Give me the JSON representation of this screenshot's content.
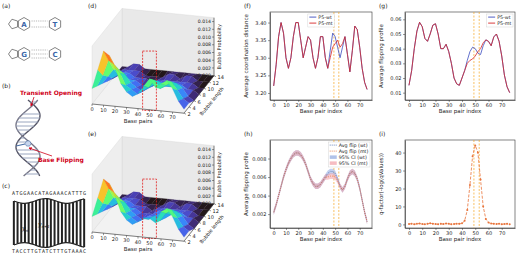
{
  "chart_data": [
    {
      "type": "surface",
      "panel": "(d)",
      "x": [
        0,
        5,
        10,
        15,
        20,
        25,
        30,
        35,
        40,
        45,
        50,
        55,
        60,
        65,
        70,
        75,
        80
      ],
      "y": [
        2,
        4,
        6,
        8,
        10,
        12,
        14
      ],
      "z": [
        [
          0.004,
          0.009,
          0.014,
          0.013,
          0.01,
          0.006,
          0.004,
          0.003,
          0.004,
          0.006,
          0.008,
          0.006,
          0.007,
          0.008,
          0.006,
          0.003,
          0.001
        ],
        [
          0.003,
          0.006,
          0.01,
          0.009,
          0.007,
          0.004,
          0.003,
          0.002,
          0.003,
          0.004,
          0.006,
          0.004,
          0.005,
          0.006,
          0.004,
          0.002,
          0.001
        ],
        [
          0.002,
          0.004,
          0.006,
          0.006,
          0.005,
          0.003,
          0.002,
          0.001,
          0.002,
          0.003,
          0.004,
          0.003,
          0.003,
          0.004,
          0.003,
          0.001,
          0
        ],
        [
          0.001,
          0.002,
          0.003,
          0.003,
          0.002,
          0.002,
          0.001,
          0.001,
          0.001,
          0.002,
          0.002,
          0.002,
          0.002,
          0.002,
          0.001,
          0.001,
          0
        ],
        [
          0,
          0.001,
          0.002,
          0.002,
          0.001,
          0.001,
          0.001,
          0,
          0.001,
          0.001,
          0.001,
          0.001,
          0.001,
          0.001,
          0.001,
          0,
          0
        ],
        [
          0,
          0.001,
          0.001,
          0.001,
          0.001,
          0,
          0,
          0,
          0,
          0.001,
          0.001,
          0,
          0.001,
          0.001,
          0,
          0,
          0
        ],
        [
          0,
          0,
          0.001,
          0.001,
          0,
          0,
          0,
          0,
          0,
          0,
          0,
          0,
          0,
          0,
          0,
          0,
          0
        ]
      ],
      "xlim": [
        0,
        80
      ],
      "ylim": [
        2,
        14
      ],
      "zlim": [
        0,
        0.015
      ],
      "xticks": [
        0,
        10,
        20,
        30,
        40,
        50,
        60,
        70
      ],
      "yticks": [
        2,
        4,
        6,
        8,
        10,
        12,
        14
      ],
      "zticks": [
        {
          "value": 0,
          "label": "0.000"
        },
        0.002,
        0.004,
        0.006,
        0.008,
        {
          "value": 0.01,
          "label": "0.010"
        },
        0.012,
        0.014
      ],
      "x_label": "Base pairs",
      "y_label": "Bubble length",
      "z_label": "Bubble Probability",
      "highlight_x": [
        44,
        56
      ]
    },
    {
      "type": "surface",
      "panel": "(e)",
      "x": [
        0,
        5,
        10,
        15,
        20,
        25,
        30,
        35,
        40,
        45,
        50,
        55,
        60,
        65,
        70,
        75,
        80
      ],
      "y": [
        2,
        4,
        6,
        8,
        10,
        12,
        14
      ],
      "z": [
        [
          0.004,
          0.009,
          0.014,
          0.013,
          0.01,
          0.006,
          0.004,
          0.003,
          0.004,
          0.005,
          0.005,
          0.004,
          0.007,
          0.008,
          0.006,
          0.003,
          0.001
        ],
        [
          0.003,
          0.006,
          0.01,
          0.009,
          0.007,
          0.004,
          0.003,
          0.002,
          0.003,
          0.003,
          0.004,
          0.003,
          0.005,
          0.006,
          0.004,
          0.002,
          0.001
        ],
        [
          0.002,
          0.004,
          0.006,
          0.006,
          0.005,
          0.003,
          0.002,
          0.001,
          0.002,
          0.002,
          0.003,
          0.002,
          0.003,
          0.004,
          0.003,
          0.001,
          0
        ],
        [
          0.001,
          0.002,
          0.003,
          0.003,
          0.002,
          0.002,
          0.001,
          0.001,
          0.001,
          0.002,
          0.002,
          0.002,
          0.002,
          0.002,
          0.001,
          0.001,
          0
        ],
        [
          0,
          0.001,
          0.002,
          0.002,
          0.001,
          0.001,
          0.001,
          0,
          0.001,
          0.001,
          0.001,
          0.001,
          0.001,
          0.001,
          0.001,
          0,
          0
        ],
        [
          0,
          0.001,
          0.001,
          0.001,
          0.001,
          0,
          0,
          0,
          0,
          0.001,
          0.001,
          0,
          0.001,
          0.001,
          0,
          0,
          0
        ],
        [
          0,
          0,
          0.001,
          0.001,
          0,
          0,
          0,
          0,
          0,
          0,
          0,
          0,
          0,
          0,
          0,
          0,
          0
        ]
      ],
      "xlim": [
        0,
        80
      ],
      "ylim": [
        2,
        14
      ],
      "zlim": [
        0,
        0.015
      ],
      "xticks": [
        0,
        10,
        20,
        30,
        40,
        50,
        60,
        70
      ],
      "yticks": [
        2,
        4,
        6,
        8,
        10,
        12,
        14
      ],
      "zticks": [
        {
          "value": 0,
          "label": "0.000"
        },
        0.002,
        0.004,
        0.006,
        0.008,
        {
          "value": 0.01,
          "label": "0.010"
        },
        0.012,
        0.014
      ],
      "x_label": "Base pairs",
      "y_label": "Bubble length",
      "z_label": "Bubble Probability",
      "highlight_x": [
        44,
        56
      ]
    },
    {
      "type": "line",
      "panel": "(f)",
      "x": [
        0,
        2,
        4,
        6,
        8,
        10,
        12,
        14,
        16,
        18,
        20,
        22,
        24,
        26,
        28,
        30,
        32,
        34,
        36,
        38,
        40,
        42,
        44,
        46,
        48,
        50,
        52,
        54,
        56,
        58,
        60,
        62,
        64,
        66,
        68,
        70,
        72,
        74,
        76
      ],
      "series": [
        {
          "name": "P5-wt",
          "color": "#3b4cc0",
          "values": [
            3.22,
            3.28,
            3.36,
            3.4,
            3.37,
            3.3,
            3.27,
            3.3,
            3.36,
            3.4,
            3.4,
            3.35,
            3.3,
            3.33,
            3.36,
            3.35,
            3.3,
            3.27,
            3.3,
            3.36,
            3.36,
            3.3,
            3.27,
            3.32,
            3.37,
            3.36,
            3.33,
            3.3,
            3.33,
            3.36,
            3.31,
            3.26,
            3.32,
            3.39,
            3.38,
            3.33,
            3.27,
            3.23,
            3.21
          ]
        },
        {
          "name": "P5-mt",
          "color": "#d62728",
          "values": [
            3.22,
            3.28,
            3.36,
            3.4,
            3.37,
            3.3,
            3.27,
            3.3,
            3.36,
            3.4,
            3.4,
            3.35,
            3.3,
            3.33,
            3.36,
            3.35,
            3.3,
            3.27,
            3.3,
            3.36,
            3.36,
            3.3,
            3.27,
            3.3,
            3.33,
            3.34,
            3.35,
            3.33,
            3.34,
            3.36,
            3.31,
            3.26,
            3.32,
            3.39,
            3.38,
            3.33,
            3.27,
            3.23,
            3.21
          ]
        }
      ],
      "xlim": [
        -3,
        80
      ],
      "ylim": [
        3.18,
        3.43
      ],
      "xticks": [
        0,
        10,
        20,
        30,
        40,
        50,
        60,
        70
      ],
      "yticks": [
        {
          "value": 3.2,
          "label": "3.20"
        },
        3.25,
        {
          "value": 3.3,
          "label": "3.30"
        },
        3.35,
        {
          "value": 3.4,
          "label": "3.40"
        }
      ],
      "x_label": "Base pair index",
      "y_label": "Average coordination distance",
      "legend": "upper center",
      "vlines": [
        49,
        53
      ]
    },
    {
      "type": "line",
      "panel": "(g)",
      "x": [
        0,
        2,
        4,
        6,
        8,
        10,
        12,
        14,
        16,
        18,
        20,
        22,
        24,
        26,
        28,
        30,
        32,
        34,
        36,
        38,
        40,
        42,
        44,
        46,
        48,
        50,
        52,
        54,
        56,
        58,
        60,
        62,
        64,
        66,
        68,
        70,
        72,
        74,
        76
      ],
      "series": [
        {
          "name": "P5-wt",
          "color": "#3b4cc0",
          "values": [
            0.015,
            0.025,
            0.04,
            0.052,
            0.058,
            0.055,
            0.047,
            0.045,
            0.05,
            0.056,
            0.057,
            0.05,
            0.04,
            0.04,
            0.043,
            0.038,
            0.03,
            0.02,
            0.016,
            0.015,
            0.02,
            0.025,
            0.032,
            0.038,
            0.041,
            0.04,
            0.037,
            0.036,
            0.042,
            0.046,
            0.045,
            0.042,
            0.048,
            0.05,
            0.045,
            0.035,
            0.022,
            0.014,
            0.01
          ]
        },
        {
          "name": "P5-mt",
          "color": "#d62728",
          "values": [
            0.015,
            0.025,
            0.04,
            0.052,
            0.058,
            0.055,
            0.047,
            0.045,
            0.05,
            0.056,
            0.057,
            0.05,
            0.04,
            0.04,
            0.043,
            0.038,
            0.03,
            0.02,
            0.016,
            0.015,
            0.02,
            0.025,
            0.03,
            0.032,
            0.033,
            0.035,
            0.038,
            0.04,
            0.044,
            0.046,
            0.045,
            0.042,
            0.048,
            0.05,
            0.045,
            0.035,
            0.022,
            0.014,
            0.01
          ]
        }
      ],
      "xlim": [
        -3,
        80
      ],
      "ylim": [
        0.005,
        0.065
      ],
      "xticks": [
        0,
        10,
        20,
        30,
        40,
        50,
        60,
        70
      ],
      "yticks": [
        0.01,
        0.02,
        0.03,
        0.04,
        0.05,
        0.06
      ],
      "x_label": "Base pair index",
      "y_label": "Average flipping profile",
      "legend": "upper right",
      "vlines": [
        49,
        53
      ]
    },
    {
      "type": "line",
      "panel": "(h)",
      "x": [
        0,
        2,
        4,
        6,
        8,
        10,
        12,
        14,
        16,
        18,
        20,
        22,
        24,
        26,
        28,
        30,
        32,
        34,
        36,
        38,
        40,
        42,
        44,
        46,
        48,
        50,
        52,
        54,
        56,
        58,
        60,
        62,
        64,
        66,
        68,
        70,
        72,
        74,
        76
      ],
      "series": [
        {
          "name": "Avg flip (wt)",
          "color": "#4c6fb3",
          "line_style": "dotted",
          "values": [
            0.0022,
            0.003,
            0.004,
            0.005,
            0.006,
            0.0068,
            0.0075,
            0.008,
            0.0084,
            0.0086,
            0.0086,
            0.0084,
            0.008,
            0.0074,
            0.0066,
            0.0058,
            0.0053,
            0.005,
            0.005,
            0.0052,
            0.0056,
            0.006,
            0.0064,
            0.0066,
            0.0066,
            0.0064,
            0.0058,
            0.005,
            0.0046,
            0.005,
            0.0058,
            0.0064,
            0.0066,
            0.0064,
            0.0058,
            0.0048,
            0.0035,
            0.0022,
            0.0012
          ],
          "ci_name": "95% CI (wt)",
          "ci_color": "#8fa8e0",
          "ci": [
            0.0003,
            0.0003,
            0.0003,
            0.0003,
            0.0003,
            0.0003,
            0.0003,
            0.0003,
            0.0003,
            0.0003,
            0.0003,
            0.0003,
            0.0003,
            0.0003,
            0.0003,
            0.0003,
            0.0003,
            0.0003,
            0.0003,
            0.0003,
            0.0003,
            0.0003,
            0.0003,
            0.0003,
            0.0003,
            0.0003,
            0.0003,
            0.0003,
            0.0003,
            0.0003,
            0.0003,
            0.0003,
            0.0003,
            0.0003,
            0.0003,
            0.0003,
            0.0003,
            0.0003,
            0.0003
          ]
        },
        {
          "name": "Avg flip (mt)",
          "color": "#e8743b",
          "line_style": "dotted",
          "values": [
            0.0022,
            0.003,
            0.004,
            0.005,
            0.006,
            0.0068,
            0.0075,
            0.008,
            0.0084,
            0.0086,
            0.0086,
            0.0084,
            0.008,
            0.0074,
            0.0066,
            0.0058,
            0.0053,
            0.005,
            0.005,
            0.0052,
            0.0056,
            0.006,
            0.006,
            0.0061,
            0.0061,
            0.006,
            0.0056,
            0.005,
            0.0046,
            0.005,
            0.0058,
            0.0064,
            0.0066,
            0.0064,
            0.0058,
            0.0048,
            0.0035,
            0.0022,
            0.0012
          ],
          "ci_name": "95% CI (mt)",
          "ci_color": "#f2a0a8",
          "ci": [
            0.0003,
            0.0003,
            0.0003,
            0.0003,
            0.0003,
            0.0003,
            0.0003,
            0.0003,
            0.0003,
            0.0003,
            0.0003,
            0.0003,
            0.0003,
            0.0003,
            0.0003,
            0.0003,
            0.0003,
            0.0003,
            0.0003,
            0.0003,
            0.0003,
            0.0003,
            0.0003,
            0.0003,
            0.0003,
            0.0003,
            0.0003,
            0.0003,
            0.0003,
            0.0003,
            0.0003,
            0.0003,
            0.0003,
            0.0003,
            0.0003,
            0.0003,
            0.0003,
            0.0003,
            0.0003
          ]
        }
      ],
      "xlim": [
        -3,
        80
      ],
      "ylim": [
        0.0005,
        0.01
      ],
      "xticks": [
        0,
        10,
        20,
        30,
        40,
        50,
        60,
        70
      ],
      "yticks": [
        0.002,
        0.004,
        0.006,
        0.008
      ],
      "x_label": "Base pair index",
      "y_label": "Average flipping profile",
      "legend": "upper right",
      "vlines": [
        49,
        53
      ]
    },
    {
      "type": "line",
      "panel": "(i)",
      "x": [
        0,
        2,
        4,
        6,
        8,
        10,
        12,
        14,
        16,
        18,
        20,
        22,
        24,
        26,
        28,
        30,
        32,
        34,
        36,
        38,
        40,
        42,
        44,
        46,
        48,
        50,
        52,
        54,
        56,
        58,
        60,
        62,
        64,
        66,
        68,
        70,
        72,
        74,
        76
      ],
      "series": [
        {
          "color": "#e8743b",
          "marker": "circle",
          "line_style": "dashed",
          "values": [
            0.2,
            0.4,
            0.1,
            0.3,
            0.5,
            0.2,
            0.1,
            0.3,
            0.6,
            0.4,
            0.2,
            0.1,
            0.3,
            0.2,
            0.5,
            0.3,
            0.1,
            0.2,
            0.4,
            0.3,
            0.6,
            2,
            8,
            22,
            38,
            44,
            40,
            25,
            10,
            3,
            1,
            0.5,
            0.3,
            0.2,
            0.4,
            0.1,
            0.2,
            0.3,
            0.1
          ]
        }
      ],
      "xlim": [
        -3,
        80
      ],
      "ylim": [
        -2,
        47
      ],
      "xticks": [
        0,
        10,
        20,
        30,
        40,
        50,
        60,
        70
      ],
      "yticks": [
        0,
        10,
        20,
        30,
        40
      ],
      "x_label": "Base pair index",
      "y_label": "q-factor(-log(qValues))",
      "vlines": [
        49,
        53
      ]
    }
  ],
  "diagrams": {
    "a": {
      "panel": "(a)",
      "pairs": [
        [
          "A",
          "T"
        ],
        [
          "G",
          "C"
        ]
      ]
    },
    "b": {
      "panel": "(b)",
      "labels": [
        "Transient Opening",
        "Base Flipping"
      ]
    },
    "c": {
      "panel": "(c)",
      "top": "ATGGAACATAGAAACATTTG",
      "bottom": "TACCTTGTATCTTTGTAAAC",
      "y_labels": [
        {
          "base": "y",
          "sub": "n"
        },
        {
          "base": "y",
          "sub": "n+1"
        }
      ]
    }
  }
}
